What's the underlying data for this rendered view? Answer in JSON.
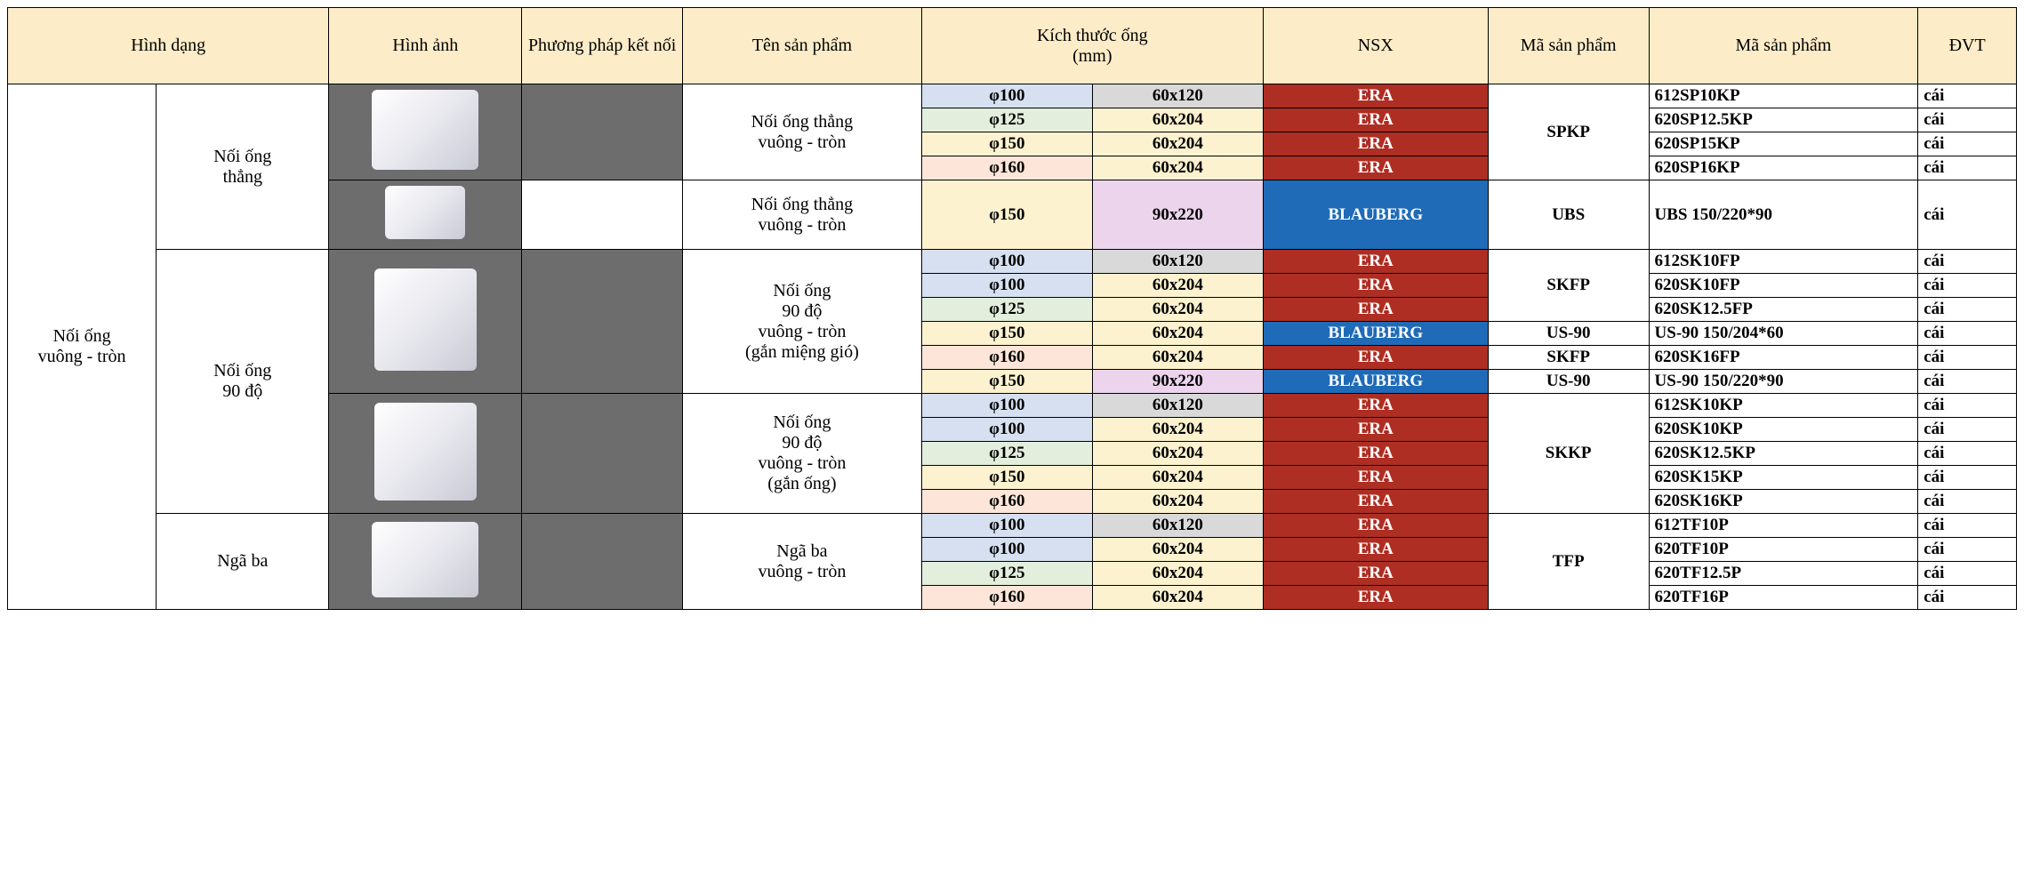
{
  "header": {
    "shape": "Hình dạng",
    "image": "Hình ảnh",
    "connection": "Phương pháp kết nối",
    "prod_name": "Tên sản phẩm",
    "pipe_size": "Kích thước ống\n(mm)",
    "mfr": "NSX",
    "code": "Mã sản phẩm",
    "code2": "Mã sản phẩm",
    "unit": "ĐVT"
  },
  "colors": {
    "header_bg": "#fdecc8",
    "img_bg": "#6d6d6d",
    "blue50": "#d6e0f0",
    "green50": "#e3efdc",
    "yellow50": "#fcf2d0",
    "peach50": "#fde6d9",
    "pink50": "#ecd4ec",
    "gray50": "#d9d9d9",
    "era": "#ae2e24",
    "blauberg": "#1f6bb8"
  },
  "sections": {
    "mega": "Nối ống\nvuông - tròn",
    "g1_shape": "Nối ống\nthẳng",
    "g1_name": "Nối ống thẳng\nvuông - tròn",
    "g1b_name": "Nối ống thẳng\nvuông - tròn",
    "g2_shape": "Nối ống\n90 độ",
    "g2a_name": "Nối ống\n90 độ\nvuông - tròn\n(gắn miệng gió)",
    "g2b_name": "Nối ống\n90 độ\nvuông - tròn\n(gắn ống)",
    "g3_shape": "Ngã ba",
    "g3_name": "Ngã ba\nvuông - tròn"
  },
  "rows": [
    {
      "d": "φ100",
      "dc": "#d6e0f0",
      "s": "60x120",
      "sc": "#d9d9d9",
      "m": "ERA",
      "mc": "#ae2e24",
      "sku": "612SP10KP",
      "u": "cái"
    },
    {
      "d": "φ125",
      "dc": "#e3efdc",
      "s": "60x204",
      "sc": "#fcf2d0",
      "m": "ERA",
      "mc": "#ae2e24",
      "sku": "620SP12.5KP",
      "u": "cái"
    },
    {
      "d": "φ150",
      "dc": "#fcf2d0",
      "s": "60x204",
      "sc": "#fcf2d0",
      "m": "ERA",
      "mc": "#ae2e24",
      "sku": "620SP15KP",
      "u": "cái"
    },
    {
      "d": "φ160",
      "dc": "#fde6d9",
      "s": "60x204",
      "sc": "#fcf2d0",
      "m": "ERA",
      "mc": "#ae2e24",
      "sku": "620SP16KP",
      "u": "cái"
    },
    {
      "d": "φ150",
      "dc": "#fcf2d0",
      "s": "90x220",
      "sc": "#ecd4ec",
      "m": "BLAUBERG",
      "mc": "#1f6bb8",
      "sku": "UBS 150/220*90",
      "u": "cái"
    },
    {
      "d": "φ100",
      "dc": "#d6e0f0",
      "s": "60x120",
      "sc": "#d9d9d9",
      "m": "ERA",
      "mc": "#ae2e24",
      "sku": "612SK10FP",
      "u": "cái"
    },
    {
      "d": "φ100",
      "dc": "#d6e0f0",
      "s": "60x204",
      "sc": "#fcf2d0",
      "m": "ERA",
      "mc": "#ae2e24",
      "sku": "620SK10FP",
      "u": "cái"
    },
    {
      "d": "φ125",
      "dc": "#e3efdc",
      "s": "60x204",
      "sc": "#fcf2d0",
      "m": "ERA",
      "mc": "#ae2e24",
      "sku": "620SK12.5FP",
      "u": "cái"
    },
    {
      "d": "φ150",
      "dc": "#fcf2d0",
      "s": "60x204",
      "sc": "#fcf2d0",
      "m": "BLAUBERG",
      "mc": "#1f6bb8",
      "sku": "US-90 150/204*60",
      "u": "cái"
    },
    {
      "d": "φ160",
      "dc": "#fde6d9",
      "s": "60x204",
      "sc": "#fcf2d0",
      "m": "ERA",
      "mc": "#ae2e24",
      "sku": "620SK16FP",
      "u": "cái"
    },
    {
      "d": "φ150",
      "dc": "#fcf2d0",
      "s": "90x220",
      "sc": "#ecd4ec",
      "m": "BLAUBERG",
      "mc": "#1f6bb8",
      "sku": "US-90 150/220*90",
      "u": "cái"
    },
    {
      "d": "φ100",
      "dc": "#d6e0f0",
      "s": "60x120",
      "sc": "#d9d9d9",
      "m": "ERA",
      "mc": "#ae2e24",
      "sku": "612SK10KP",
      "u": "cái"
    },
    {
      "d": "φ100",
      "dc": "#d6e0f0",
      "s": "60x204",
      "sc": "#fcf2d0",
      "m": "ERA",
      "mc": "#ae2e24",
      "sku": "620SK10KP",
      "u": "cái"
    },
    {
      "d": "φ125",
      "dc": "#e3efdc",
      "s": "60x204",
      "sc": "#fcf2d0",
      "m": "ERA",
      "mc": "#ae2e24",
      "sku": "620SK12.5KP",
      "u": "cái"
    },
    {
      "d": "φ150",
      "dc": "#fcf2d0",
      "s": "60x204",
      "sc": "#fcf2d0",
      "m": "ERA",
      "mc": "#ae2e24",
      "sku": "620SK15KP",
      "u": "cái"
    },
    {
      "d": "φ160",
      "dc": "#fde6d9",
      "s": "60x204",
      "sc": "#fcf2d0",
      "m": "ERA",
      "mc": "#ae2e24",
      "sku": "620SK16KP",
      "u": "cái"
    },
    {
      "d": "φ100",
      "dc": "#d6e0f0",
      "s": "60x120",
      "sc": "#d9d9d9",
      "m": "ERA",
      "mc": "#ae2e24",
      "sku": "612TF10P",
      "u": "cái"
    },
    {
      "d": "φ100",
      "dc": "#d6e0f0",
      "s": "60x204",
      "sc": "#fcf2d0",
      "m": "ERA",
      "mc": "#ae2e24",
      "sku": "620TF10P",
      "u": "cái"
    },
    {
      "d": "φ125",
      "dc": "#e3efdc",
      "s": "60x204",
      "sc": "#fcf2d0",
      "m": "ERA",
      "mc": "#ae2e24",
      "sku": "620TF12.5P",
      "u": "cái"
    },
    {
      "d": "φ160",
      "dc": "#fde6d9",
      "s": "60x204",
      "sc": "#fcf2d0",
      "m": "ERA",
      "mc": "#ae2e24",
      "sku": "620TF16P",
      "u": "cái"
    }
  ],
  "codes": {
    "spkp": "SPKP",
    "ubs": "UBS",
    "skfp": "SKFP",
    "us90": "US-90",
    "skkp": "SKKP",
    "tfp": "TFP"
  },
  "col_widths": {
    "shape1": "7.4%",
    "shape2": "8.6%",
    "image": "9.6%",
    "conn": "8%",
    "name": "11.9%",
    "size1": "8.5%",
    "size2": "8.5%",
    "mfr": "11.2%",
    "code": "8%",
    "sku": "13.4%",
    "unit": "4.9%"
  }
}
